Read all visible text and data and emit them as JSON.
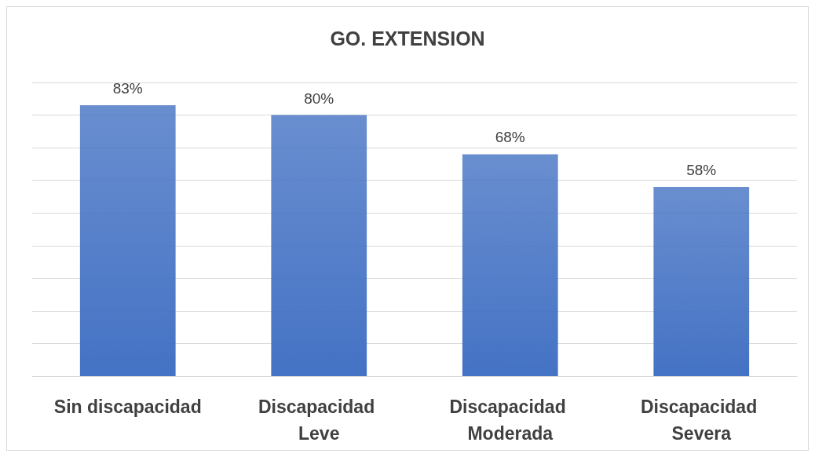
{
  "chart_data": {
    "type": "bar",
    "title": "GO. EXTENSION",
    "categories": [
      "Sin discapacidad",
      "Discapacidad Leve",
      "Discapacidad Moderada",
      "Discapacidad Severa"
    ],
    "values": [
      83,
      80,
      68,
      58
    ],
    "color": "#4472c4",
    "value_labels": [
      "83%",
      "80%",
      "68%",
      "58%"
    ],
    "ylim": [
      0,
      90
    ],
    "yticks": [
      {
        "value": 0,
        "label": null
      },
      {
        "value": 10,
        "label": null
      },
      {
        "value": 20,
        "label": null
      },
      {
        "value": 30,
        "label": null
      },
      {
        "value": 40,
        "label": null
      },
      {
        "value": 50,
        "label": null
      },
      {
        "value": 60,
        "label": null
      },
      {
        "value": 70,
        "label": null
      },
      {
        "value": 80,
        "label": null
      },
      {
        "value": 90,
        "label": null
      }
    ],
    "grid": "y",
    "tick_labels": "x"
  }
}
